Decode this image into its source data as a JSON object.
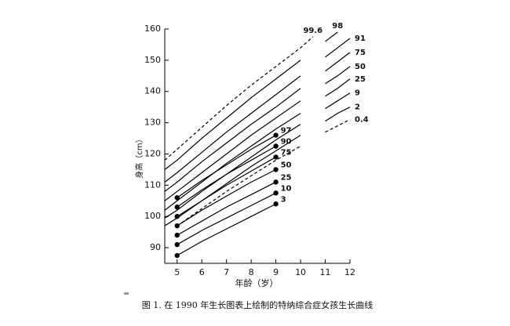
{
  "chart_data": {
    "type": "line",
    "caption": "图 1. 在 1990 年生长图表上绘制的特纳综合症女孩生长曲线",
    "xlabel": "年龄（岁）",
    "ylabel": "身高（cm）",
    "x": [
      4.5,
      5,
      6,
      7,
      8,
      9,
      10,
      10.5,
      11,
      11.5,
      12
    ],
    "xlim": [
      4.5,
      12
    ],
    "xticks": [
      5,
      6,
      7,
      8,
      9,
      10,
      11,
      12
    ],
    "ylim": [
      85,
      160
    ],
    "yticks": [
      90,
      100,
      110,
      120,
      130,
      140,
      150,
      160
    ],
    "grid": false,
    "series": [
      {
        "name": "99.6",
        "color": "#000000",
        "dashed": true,
        "values": [
          118,
          121.5,
          128.5,
          135.5,
          142,
          148,
          154,
          157.5,
          null,
          null,
          null
        ]
      },
      {
        "name": "98",
        "color": "#000000",
        "values": [
          115,
          118,
          125,
          131.5,
          138,
          144,
          150,
          null,
          156,
          159,
          null
        ]
      },
      {
        "name": "91",
        "color": "#000000",
        "values": [
          111,
          114,
          120.5,
          127,
          133,
          139,
          145,
          null,
          151,
          154,
          157
        ]
      },
      {
        "name": "75",
        "color": "#000000",
        "values": [
          108,
          111,
          117.5,
          123.5,
          129.5,
          135,
          141,
          null,
          146.5,
          149.5,
          152.5
        ]
      },
      {
        "name": "50",
        "color": "#000000",
        "values": [
          105,
          108,
          114,
          120,
          126,
          131.5,
          137,
          null,
          142.5,
          145,
          148
        ]
      },
      {
        "name": "25",
        "color": "#000000",
        "values": [
          102,
          105,
          111,
          117,
          122.5,
          128,
          133,
          null,
          138.5,
          141,
          144
        ]
      },
      {
        "name": "9",
        "color": "#000000",
        "values": [
          99.5,
          102,
          108,
          113.5,
          119,
          124.5,
          129.5,
          null,
          134.5,
          137,
          139.5
        ]
      },
      {
        "name": "2",
        "color": "#000000",
        "values": [
          97,
          99.5,
          105,
          110.5,
          116,
          121,
          126,
          null,
          130.5,
          133,
          135
        ]
      },
      {
        "name": "0.4",
        "color": "#000000",
        "dashed": true,
        "values": [
          null,
          97,
          102.5,
          108,
          113,
          118,
          122.5,
          null,
          127,
          129,
          131
        ]
      },
      {
        "name": "97",
        "color": "#000000",
        "markers": true,
        "values": [
          null,
          106,
          111.5,
          116.5,
          121.5,
          126,
          null,
          null,
          null,
          null,
          null
        ]
      },
      {
        "name": "90",
        "color": "#000000",
        "markers": true,
        "values": [
          null,
          103,
          108.5,
          113.5,
          118,
          122.5,
          null,
          null,
          null,
          null,
          null
        ]
      },
      {
        "name": "75",
        "color": "#000000",
        "markers": true,
        "values": [
          null,
          100,
          105,
          110,
          114.5,
          119,
          null,
          null,
          null,
          null,
          null
        ]
      },
      {
        "name": "50",
        "color": "#000000",
        "markers": true,
        "values": [
          null,
          97,
          102,
          106.5,
          111,
          115,
          null,
          null,
          null,
          null,
          null
        ]
      },
      {
        "name": "25",
        "color": "#000000",
        "markers": true,
        "values": [
          null,
          94,
          98.5,
          103,
          107,
          111,
          null,
          null,
          null,
          null,
          null
        ]
      },
      {
        "name": "10",
        "color": "#000000",
        "markers": true,
        "values": [
          null,
          91,
          95.5,
          99.5,
          103.5,
          107.5,
          null,
          null,
          null,
          null,
          null
        ]
      },
      {
        "name": "3",
        "color": "#000000",
        "markers": true,
        "values": [
          null,
          87.5,
          92,
          96,
          100,
          104,
          null,
          null,
          null,
          null,
          null
        ]
      }
    ]
  }
}
